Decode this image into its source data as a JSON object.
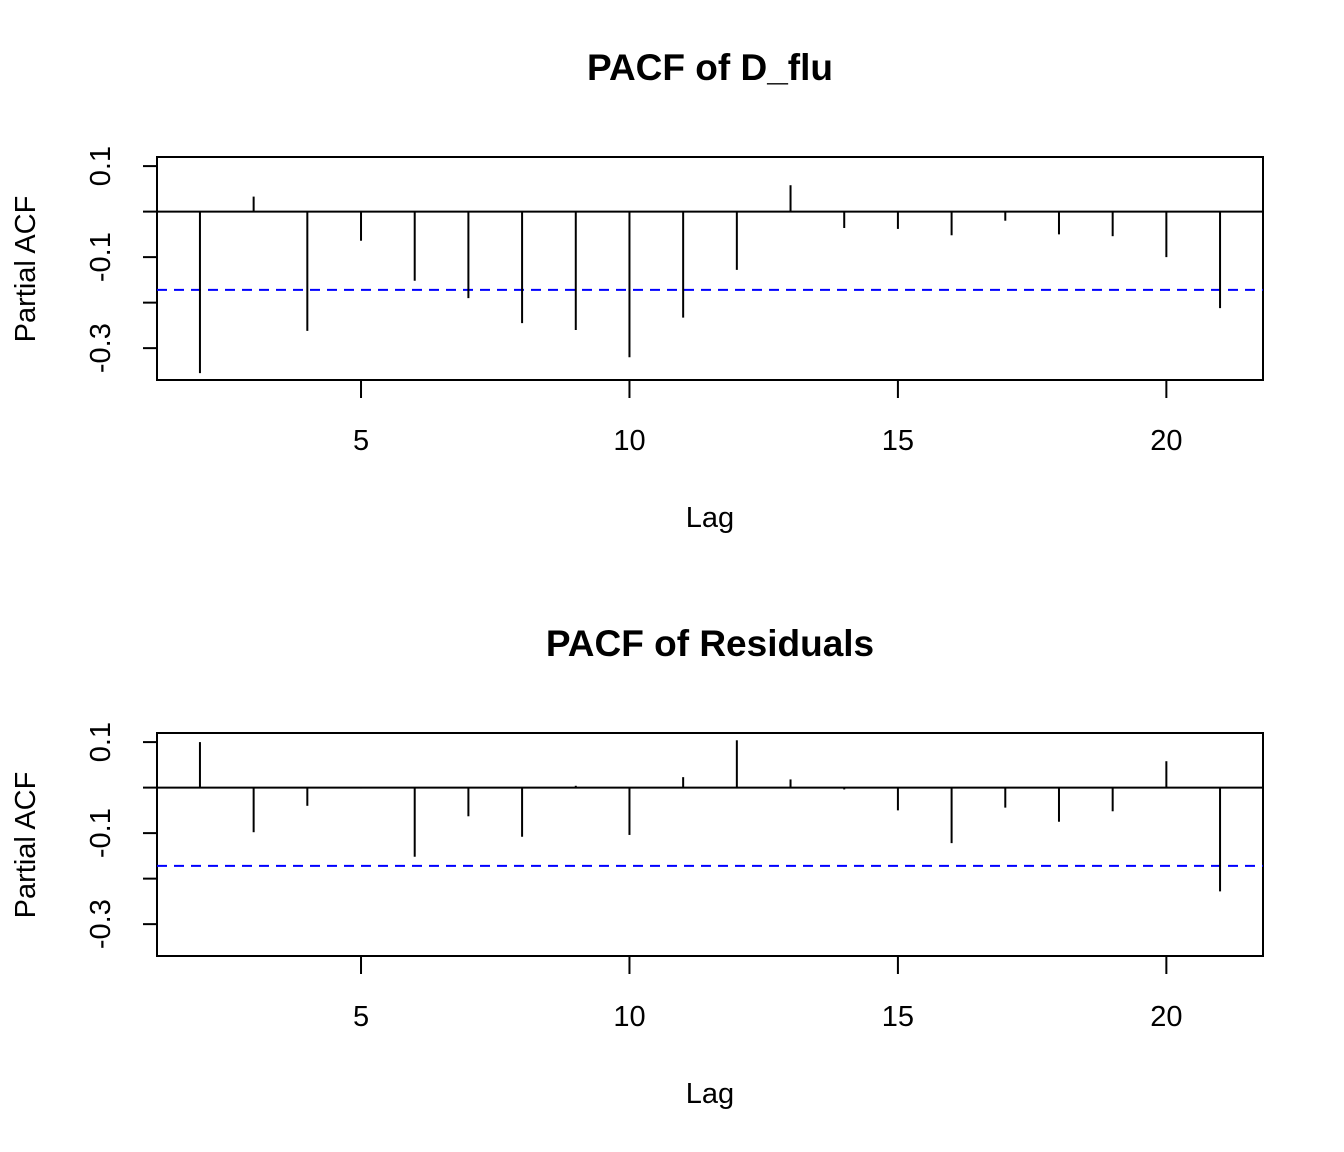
{
  "chart_data": [
    {
      "type": "bar",
      "title": "PACF of D_flu",
      "xlabel": "Lag",
      "ylabel": "Partial ACF",
      "xlim": [
        1.2,
        21.8
      ],
      "ylim": [
        -0.37,
        0.12
      ],
      "x_ticks": [
        5,
        10,
        15,
        20
      ],
      "x_tick_labels": [
        "5",
        "10",
        "15",
        "20"
      ],
      "y_ticks": [
        0.1,
        0.0,
        -0.1,
        -0.2,
        -0.3
      ],
      "y_tick_labels": [
        "0.1",
        "",
        "-0.1",
        "",
        "-0.3"
      ],
      "zero_line": 0,
      "confidence_bound": -0.172,
      "confidence_color": "#0000ff",
      "lags": [
        2,
        3,
        4,
        5,
        6,
        7,
        8,
        9,
        10,
        11,
        12,
        13,
        14,
        15,
        16,
        17,
        18,
        19,
        20,
        21
      ],
      "values": [
        -0.355,
        0.033,
        -0.262,
        -0.064,
        -0.152,
        -0.19,
        -0.245,
        -0.26,
        -0.32,
        -0.233,
        -0.128,
        0.058,
        -0.036,
        -0.038,
        -0.052,
        -0.02,
        -0.05,
        -0.054,
        -0.1,
        -0.212
      ],
      "grid": false
    },
    {
      "type": "bar",
      "title": "PACF of Residuals",
      "xlabel": "Lag",
      "ylabel": "Partial ACF",
      "xlim": [
        1.2,
        21.8
      ],
      "ylim": [
        -0.37,
        0.12
      ],
      "x_ticks": [
        5,
        10,
        15,
        20
      ],
      "x_tick_labels": [
        "5",
        "10",
        "15",
        "20"
      ],
      "y_ticks": [
        0.1,
        0.0,
        -0.1,
        -0.2,
        -0.3
      ],
      "y_tick_labels": [
        "0.1",
        "",
        "-0.1",
        "",
        "-0.3"
      ],
      "zero_line": 0,
      "confidence_bound": -0.172,
      "confidence_color": "#0000ff",
      "lags": [
        2,
        3,
        4,
        5,
        6,
        7,
        8,
        9,
        10,
        11,
        12,
        13,
        14,
        15,
        16,
        17,
        18,
        19,
        20,
        21
      ],
      "values": [
        0.1,
        -0.098,
        -0.04,
        -0.002,
        -0.152,
        -0.063,
        -0.108,
        0.004,
        -0.104,
        0.023,
        0.104,
        0.018,
        -0.004,
        -0.05,
        -0.122,
        -0.044,
        -0.075,
        -0.052,
        0.058,
        -0.228
      ],
      "grid": false
    }
  ]
}
